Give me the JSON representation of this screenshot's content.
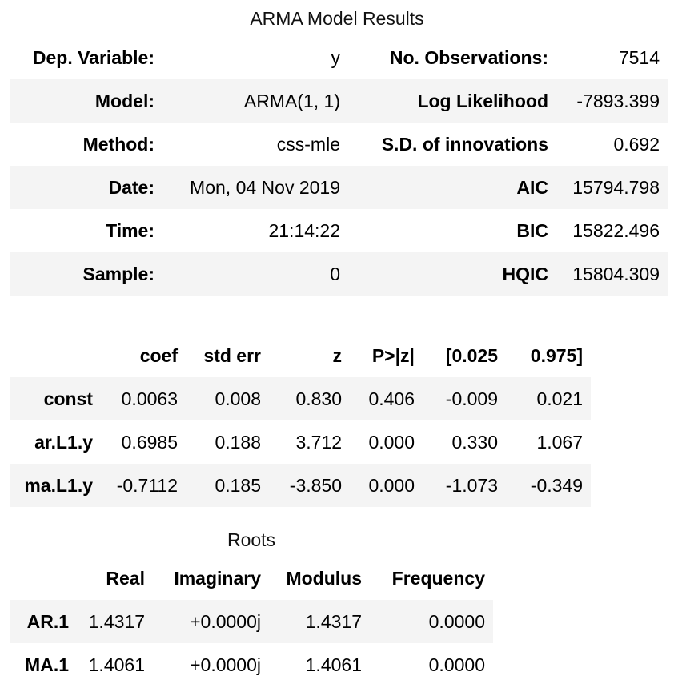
{
  "summary": {
    "caption": "ARMA Model Results",
    "rows": [
      {
        "label1": "Dep. Variable:",
        "value1": "y",
        "label2": "No. Observations:",
        "value2": "7514"
      },
      {
        "label1": "Model:",
        "value1": "ARMA(1, 1)",
        "label2": "Log Likelihood",
        "value2": "-7893.399"
      },
      {
        "label1": "Method:",
        "value1": "css-mle",
        "label2": "S.D. of innovations",
        "value2": "0.692"
      },
      {
        "label1": "Date:",
        "value1": "Mon, 04 Nov 2019",
        "label2": "AIC",
        "value2": "15794.798"
      },
      {
        "label1": "Time:",
        "value1": "21:14:22",
        "label2": "BIC",
        "value2": "15822.496"
      },
      {
        "label1": "Sample:",
        "value1": "0",
        "label2": "HQIC",
        "value2": "15804.309"
      }
    ]
  },
  "coefficients": {
    "headers": [
      "coef",
      "std err",
      "z",
      "P>|z|",
      "[0.025",
      "0.975]"
    ],
    "rows": [
      {
        "name": "const",
        "values": [
          "0.0063",
          "0.008",
          "0.830",
          "0.406",
          "-0.009",
          "0.021"
        ]
      },
      {
        "name": "ar.L1.y",
        "values": [
          "0.6985",
          "0.188",
          "3.712",
          "0.000",
          "0.330",
          "1.067"
        ]
      },
      {
        "name": "ma.L1.y",
        "values": [
          "-0.7112",
          "0.185",
          "-3.850",
          "0.000",
          "-1.073",
          "-0.349"
        ]
      }
    ]
  },
  "roots": {
    "caption": "Roots",
    "headers": [
      "Real",
      "Imaginary",
      "Modulus",
      "Frequency"
    ],
    "rows": [
      {
        "name": "AR.1",
        "values": [
          "1.4317",
          "+0.0000j",
          "1.4317",
          "0.0000"
        ]
      },
      {
        "name": "MA.1",
        "values": [
          "1.4061",
          "+0.0000j",
          "1.4061",
          "0.0000"
        ]
      }
    ]
  }
}
